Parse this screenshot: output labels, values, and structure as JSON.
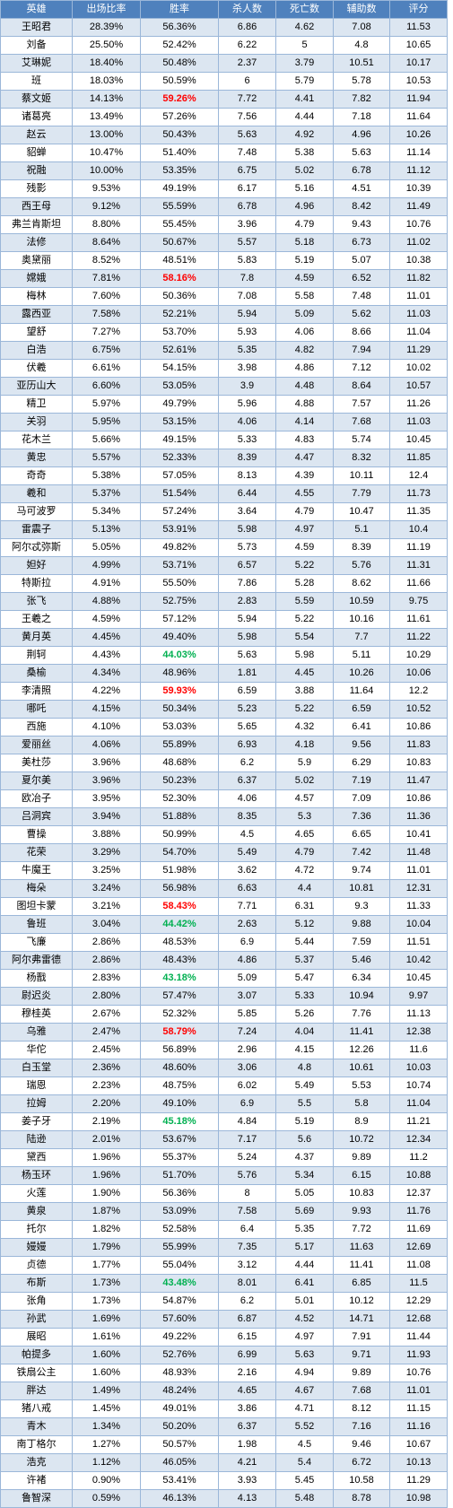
{
  "headers": [
    "英雄",
    "出场比率",
    "胜率",
    "杀人数",
    "死亡数",
    "辅助数",
    "评分"
  ],
  "styles": {
    "header_bg": "#4f81bd",
    "band_bg": "#dce6f1",
    "high_winrate_color": "#ff0000",
    "low_winrate_color": "#00b050"
  },
  "rows": [
    {
      "hero": "王昭君",
      "pick": "28.39%",
      "win": "56.36%",
      "kills": "6.86",
      "deaths": "4.62",
      "assists": "7.08",
      "score": "11.53"
    },
    {
      "hero": "刘备",
      "pick": "25.50%",
      "win": "52.42%",
      "kills": "6.22",
      "deaths": "5",
      "assists": "4.8",
      "score": "10.65"
    },
    {
      "hero": "艾琳妮",
      "pick": "18.40%",
      "win": "50.48%",
      "kills": "2.37",
      "deaths": "3.79",
      "assists": "10.51",
      "score": "10.17"
    },
    {
      "hero": "班",
      "pick": "18.03%",
      "win": "50.59%",
      "kills": "6",
      "deaths": "5.79",
      "assists": "5.78",
      "score": "10.53"
    },
    {
      "hero": "蔡文姬",
      "pick": "14.13%",
      "win": "59.26%",
      "win_style": "hi-red",
      "kills": "7.72",
      "deaths": "4.41",
      "assists": "7.82",
      "score": "11.94"
    },
    {
      "hero": "诸葛亮",
      "pick": "13.49%",
      "win": "57.26%",
      "kills": "7.56",
      "deaths": "4.44",
      "assists": "7.18",
      "score": "11.64"
    },
    {
      "hero": "赵云",
      "pick": "13.00%",
      "win": "50.43%",
      "kills": "5.63",
      "deaths": "4.92",
      "assists": "4.96",
      "score": "10.26"
    },
    {
      "hero": "貂蝉",
      "pick": "10.47%",
      "win": "51.40%",
      "kills": "7.48",
      "deaths": "5.38",
      "assists": "5.63",
      "score": "11.14"
    },
    {
      "hero": "祝融",
      "pick": "10.00%",
      "win": "53.35%",
      "kills": "6.75",
      "deaths": "5.02",
      "assists": "6.78",
      "score": "11.12"
    },
    {
      "hero": "残影",
      "pick": "9.53%",
      "win": "49.19%",
      "kills": "6.17",
      "deaths": "5.16",
      "assists": "4.51",
      "score": "10.39"
    },
    {
      "hero": "西王母",
      "pick": "9.12%",
      "win": "55.59%",
      "kills": "6.78",
      "deaths": "4.96",
      "assists": "8.42",
      "score": "11.49"
    },
    {
      "hero": "弗兰肯斯坦",
      "pick": "8.80%",
      "win": "55.45%",
      "kills": "3.96",
      "deaths": "4.79",
      "assists": "9.43",
      "score": "10.76"
    },
    {
      "hero": "法修",
      "pick": "8.64%",
      "win": "50.67%",
      "kills": "5.57",
      "deaths": "5.18",
      "assists": "6.73",
      "score": "11.02"
    },
    {
      "hero": "奥黛丽",
      "pick": "8.52%",
      "win": "48.51%",
      "kills": "5.83",
      "deaths": "5.19",
      "assists": "5.07",
      "score": "10.38"
    },
    {
      "hero": "嫦娥",
      "pick": "7.81%",
      "win": "58.16%",
      "win_style": "hi-red",
      "kills": "7.8",
      "deaths": "4.59",
      "assists": "6.52",
      "score": "11.82"
    },
    {
      "hero": "梅林",
      "pick": "7.60%",
      "win": "50.36%",
      "kills": "7.08",
      "deaths": "5.58",
      "assists": "7.48",
      "score": "11.01"
    },
    {
      "hero": "露西亚",
      "pick": "7.58%",
      "win": "52.21%",
      "kills": "5.94",
      "deaths": "5.09",
      "assists": "5.62",
      "score": "11.03"
    },
    {
      "hero": "望舒",
      "pick": "7.27%",
      "win": "53.70%",
      "kills": "5.93",
      "deaths": "4.06",
      "assists": "8.66",
      "score": "11.04"
    },
    {
      "hero": "白浩",
      "pick": "6.75%",
      "win": "52.61%",
      "kills": "5.35",
      "deaths": "4.82",
      "assists": "7.94",
      "score": "11.29"
    },
    {
      "hero": "伏羲",
      "pick": "6.61%",
      "win": "54.15%",
      "kills": "3.98",
      "deaths": "4.86",
      "assists": "7.12",
      "score": "10.02"
    },
    {
      "hero": "亚历山大",
      "pick": "6.60%",
      "win": "53.05%",
      "kills": "3.9",
      "deaths": "4.48",
      "assists": "8.64",
      "score": "10.57"
    },
    {
      "hero": "精卫",
      "pick": "5.97%",
      "win": "49.79%",
      "kills": "5.96",
      "deaths": "4.88",
      "assists": "7.57",
      "score": "11.26"
    },
    {
      "hero": "关羽",
      "pick": "5.95%",
      "win": "53.15%",
      "kills": "4.06",
      "deaths": "4.14",
      "assists": "7.68",
      "score": "11.03"
    },
    {
      "hero": "花木兰",
      "pick": "5.66%",
      "win": "49.15%",
      "kills": "5.33",
      "deaths": "4.83",
      "assists": "5.74",
      "score": "10.45"
    },
    {
      "hero": "黄忠",
      "pick": "5.57%",
      "win": "52.33%",
      "kills": "8.39",
      "deaths": "4.47",
      "assists": "8.32",
      "score": "11.85"
    },
    {
      "hero": "奇奇",
      "pick": "5.38%",
      "win": "57.05%",
      "kills": "8.13",
      "deaths": "4.39",
      "assists": "10.11",
      "score": "12.4"
    },
    {
      "hero": "羲和",
      "pick": "5.37%",
      "win": "51.54%",
      "kills": "6.44",
      "deaths": "4.55",
      "assists": "7.79",
      "score": "11.73"
    },
    {
      "hero": "马可波罗",
      "pick": "5.34%",
      "win": "57.24%",
      "kills": "3.64",
      "deaths": "4.79",
      "assists": "10.47",
      "score": "11.35"
    },
    {
      "hero": "雷震子",
      "pick": "5.13%",
      "win": "53.91%",
      "kills": "5.98",
      "deaths": "4.97",
      "assists": "5.1",
      "score": "10.4"
    },
    {
      "hero": "阿尔忒弥斯",
      "pick": "5.05%",
      "win": "49.82%",
      "kills": "5.73",
      "deaths": "4.59",
      "assists": "8.39",
      "score": "11.19"
    },
    {
      "hero": "妲好",
      "pick": "4.99%",
      "win": "53.71%",
      "kills": "6.57",
      "deaths": "5.22",
      "assists": "5.76",
      "score": "11.31"
    },
    {
      "hero": "特斯拉",
      "pick": "4.91%",
      "win": "55.50%",
      "kills": "7.86",
      "deaths": "5.28",
      "assists": "8.62",
      "score": "11.66"
    },
    {
      "hero": "张飞",
      "pick": "4.88%",
      "win": "52.75%",
      "kills": "2.83",
      "deaths": "5.59",
      "assists": "10.59",
      "score": "9.75"
    },
    {
      "hero": "王羲之",
      "pick": "4.59%",
      "win": "57.12%",
      "kills": "5.94",
      "deaths": "5.22",
      "assists": "10.16",
      "score": "11.61"
    },
    {
      "hero": "黄月英",
      "pick": "4.45%",
      "win": "49.40%",
      "kills": "5.98",
      "deaths": "5.54",
      "assists": "7.7",
      "score": "11.22"
    },
    {
      "hero": "荆轲",
      "pick": "4.43%",
      "win": "44.03%",
      "win_style": "hi-green",
      "kills": "5.63",
      "deaths": "5.98",
      "assists": "5.11",
      "score": "10.29"
    },
    {
      "hero": "桑榆",
      "pick": "4.34%",
      "win": "48.96%",
      "kills": "1.81",
      "deaths": "4.45",
      "assists": "10.26",
      "score": "10.06"
    },
    {
      "hero": "李清照",
      "pick": "4.22%",
      "win": "59.93%",
      "win_style": "hi-red",
      "kills": "6.59",
      "deaths": "3.88",
      "assists": "11.64",
      "score": "12.2"
    },
    {
      "hero": "哪吒",
      "pick": "4.15%",
      "win": "50.34%",
      "kills": "5.23",
      "deaths": "5.22",
      "assists": "6.59",
      "score": "10.52"
    },
    {
      "hero": "西施",
      "pick": "4.10%",
      "win": "53.03%",
      "kills": "5.65",
      "deaths": "4.32",
      "assists": "6.41",
      "score": "10.86"
    },
    {
      "hero": "爱丽丝",
      "pick": "4.06%",
      "win": "55.89%",
      "kills": "6.93",
      "deaths": "4.18",
      "assists": "9.56",
      "score": "11.83"
    },
    {
      "hero": "美杜莎",
      "pick": "3.96%",
      "win": "48.68%",
      "kills": "6.2",
      "deaths": "5.9",
      "assists": "6.29",
      "score": "10.83"
    },
    {
      "hero": "夏尔美",
      "pick": "3.96%",
      "win": "50.23%",
      "kills": "6.37",
      "deaths": "5.02",
      "assists": "7.19",
      "score": "11.47"
    },
    {
      "hero": "欧冶子",
      "pick": "3.95%",
      "win": "52.30%",
      "kills": "4.06",
      "deaths": "4.57",
      "assists": "7.09",
      "score": "10.86"
    },
    {
      "hero": "吕洞宾",
      "pick": "3.94%",
      "win": "51.88%",
      "kills": "8.35",
      "deaths": "5.3",
      "assists": "7.36",
      "score": "11.36"
    },
    {
      "hero": "曹操",
      "pick": "3.88%",
      "win": "50.99%",
      "kills": "4.5",
      "deaths": "4.65",
      "assists": "6.65",
      "score": "10.41"
    },
    {
      "hero": "花荣",
      "pick": "3.29%",
      "win": "54.70%",
      "kills": "5.49",
      "deaths": "4.79",
      "assists": "7.42",
      "score": "11.48"
    },
    {
      "hero": "牛魔王",
      "pick": "3.25%",
      "win": "51.98%",
      "kills": "3.62",
      "deaths": "4.72",
      "assists": "9.74",
      "score": "11.01"
    },
    {
      "hero": "梅朵",
      "pick": "3.24%",
      "win": "56.98%",
      "kills": "6.63",
      "deaths": "4.4",
      "assists": "10.81",
      "score": "12.31"
    },
    {
      "hero": "图坦卡蒙",
      "pick": "3.21%",
      "win": "58.43%",
      "win_style": "hi-red",
      "kills": "7.71",
      "deaths": "6.31",
      "assists": "9.3",
      "score": "11.33"
    },
    {
      "hero": "鲁班",
      "pick": "3.04%",
      "win": "44.42%",
      "win_style": "hi-green",
      "kills": "2.63",
      "deaths": "5.12",
      "assists": "9.88",
      "score": "10.04"
    },
    {
      "hero": "飞廉",
      "pick": "2.86%",
      "win": "48.53%",
      "kills": "6.9",
      "deaths": "5.44",
      "assists": "7.59",
      "score": "11.51"
    },
    {
      "hero": "阿尔弗雷德",
      "pick": "2.86%",
      "win": "48.43%",
      "kills": "4.86",
      "deaths": "5.37",
      "assists": "5.46",
      "score": "10.42"
    },
    {
      "hero": "杨戬",
      "pick": "2.83%",
      "win": "43.18%",
      "win_style": "hi-green",
      "kills": "5.09",
      "deaths": "5.47",
      "assists": "6.34",
      "score": "10.45"
    },
    {
      "hero": "尉迟炎",
      "pick": "2.80%",
      "win": "57.47%",
      "kills": "3.07",
      "deaths": "5.33",
      "assists": "10.94",
      "score": "9.97"
    },
    {
      "hero": "穆桂英",
      "pick": "2.67%",
      "win": "52.32%",
      "kills": "5.85",
      "deaths": "5.26",
      "assists": "7.76",
      "score": "11.13"
    },
    {
      "hero": "乌雅",
      "pick": "2.47%",
      "win": "58.79%",
      "win_style": "hi-red",
      "kills": "7.24",
      "deaths": "4.04",
      "assists": "11.41",
      "score": "12.38"
    },
    {
      "hero": "华佗",
      "pick": "2.45%",
      "win": "56.89%",
      "kills": "2.96",
      "deaths": "4.15",
      "assists": "12.26",
      "score": "11.6"
    },
    {
      "hero": "白玉堂",
      "pick": "2.36%",
      "win": "48.60%",
      "kills": "3.06",
      "deaths": "4.8",
      "assists": "10.61",
      "score": "10.03"
    },
    {
      "hero": "瑞恩",
      "pick": "2.23%",
      "win": "48.75%",
      "kills": "6.02",
      "deaths": "5.49",
      "assists": "5.53",
      "score": "10.74"
    },
    {
      "hero": "拉姆",
      "pick": "2.20%",
      "win": "49.10%",
      "kills": "6.9",
      "deaths": "5.5",
      "assists": "5.8",
      "score": "11.04"
    },
    {
      "hero": "姜子牙",
      "pick": "2.19%",
      "win": "45.18%",
      "win_style": "hi-green",
      "kills": "4.84",
      "deaths": "5.19",
      "assists": "8.9",
      "score": "11.21"
    },
    {
      "hero": "陆逊",
      "pick": "2.01%",
      "win": "53.67%",
      "kills": "7.17",
      "deaths": "5.6",
      "assists": "10.72",
      "score": "12.34"
    },
    {
      "hero": "黛西",
      "pick": "1.96%",
      "win": "55.37%",
      "kills": "5.24",
      "deaths": "4.37",
      "assists": "9.89",
      "score": "11.2"
    },
    {
      "hero": "杨玉环",
      "pick": "1.96%",
      "win": "51.70%",
      "kills": "5.76",
      "deaths": "5.34",
      "assists": "6.15",
      "score": "10.88"
    },
    {
      "hero": "火莲",
      "pick": "1.90%",
      "win": "56.36%",
      "kills": "8",
      "deaths": "5.05",
      "assists": "10.83",
      "score": "12.37"
    },
    {
      "hero": "黄泉",
      "pick": "1.87%",
      "win": "53.09%",
      "kills": "7.58",
      "deaths": "5.69",
      "assists": "9.93",
      "score": "11.76"
    },
    {
      "hero": "托尔",
      "pick": "1.82%",
      "win": "52.58%",
      "kills": "6.4",
      "deaths": "5.35",
      "assists": "7.72",
      "score": "11.69"
    },
    {
      "hero": "嫚嫚",
      "pick": "1.79%",
      "win": "55.99%",
      "kills": "7.35",
      "deaths": "5.17",
      "assists": "11.63",
      "score": "12.69"
    },
    {
      "hero": "贞德",
      "pick": "1.77%",
      "win": "55.04%",
      "kills": "3.12",
      "deaths": "4.44",
      "assists": "11.41",
      "score": "11.08"
    },
    {
      "hero": "布斯",
      "pick": "1.73%",
      "win": "43.48%",
      "win_style": "hi-green",
      "kills": "8.01",
      "deaths": "6.41",
      "assists": "6.85",
      "score": "11.5"
    },
    {
      "hero": "张角",
      "pick": "1.73%",
      "win": "54.87%",
      "kills": "6.2",
      "deaths": "5.01",
      "assists": "10.12",
      "score": "12.29"
    },
    {
      "hero": "孙武",
      "pick": "1.69%",
      "win": "57.60%",
      "kills": "6.87",
      "deaths": "4.52",
      "assists": "14.71",
      "score": "12.68"
    },
    {
      "hero": "展昭",
      "pick": "1.61%",
      "win": "49.22%",
      "kills": "6.15",
      "deaths": "4.97",
      "assists": "7.91",
      "score": "11.44"
    },
    {
      "hero": "帕提多",
      "pick": "1.60%",
      "win": "52.76%",
      "kills": "6.99",
      "deaths": "5.63",
      "assists": "9.71",
      "score": "11.93"
    },
    {
      "hero": "铁扇公主",
      "pick": "1.60%",
      "win": "48.93%",
      "kills": "2.16",
      "deaths": "4.94",
      "assists": "9.89",
      "score": "10.76"
    },
    {
      "hero": "胖达",
      "pick": "1.49%",
      "win": "48.24%",
      "kills": "4.65",
      "deaths": "4.67",
      "assists": "7.68",
      "score": "11.01"
    },
    {
      "hero": "猪八戒",
      "pick": "1.45%",
      "win": "49.01%",
      "kills": "3.86",
      "deaths": "4.71",
      "assists": "8.12",
      "score": "11.15"
    },
    {
      "hero": "青木",
      "pick": "1.34%",
      "win": "50.20%",
      "kills": "6.37",
      "deaths": "5.52",
      "assists": "7.16",
      "score": "11.16"
    },
    {
      "hero": "南丁格尔",
      "pick": "1.27%",
      "win": "50.57%",
      "kills": "1.98",
      "deaths": "4.5",
      "assists": "9.46",
      "score": "10.67"
    },
    {
      "hero": "浩克",
      "pick": "1.12%",
      "win": "46.05%",
      "kills": "4.21",
      "deaths": "5.4",
      "assists": "6.72",
      "score": "10.13"
    },
    {
      "hero": "许褚",
      "pick": "0.90%",
      "win": "53.41%",
      "kills": "3.93",
      "deaths": "5.45",
      "assists": "10.58",
      "score": "11.29"
    },
    {
      "hero": "鲁智深",
      "pick": "0.59%",
      "win": "46.13%",
      "kills": "4.13",
      "deaths": "5.48",
      "assists": "8.78",
      "score": "10.98"
    }
  ]
}
